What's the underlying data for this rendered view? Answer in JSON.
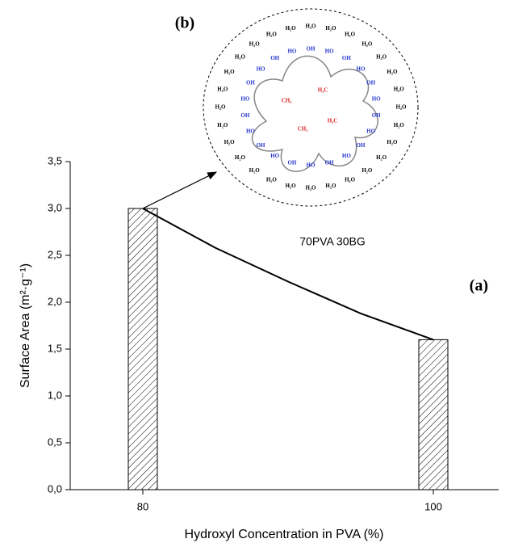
{
  "chart_data": {
    "type": "bar",
    "x_label": "Hydroxyl Concentration in PVA (%)",
    "y_label": "Surface Area (m²·g⁻¹)",
    "x": [
      80,
      100
    ],
    "values": [
      3.0,
      1.6
    ],
    "color": "#000000",
    "xlim": [
      75,
      104.5
    ],
    "xticks": [
      80,
      100
    ],
    "ylim": [
      0,
      3.5
    ],
    "yticks": [
      {
        "value": 0,
        "label": "0,0"
      },
      {
        "value": 0.5,
        "label": "0,5"
      },
      {
        "value": 1,
        "label": "1,0"
      },
      {
        "value": 1.5,
        "label": "1,5"
      },
      {
        "value": 2,
        "label": "2,0"
      },
      {
        "value": 2.5,
        "label": "2,5"
      },
      {
        "value": 3,
        "label": "3,0"
      },
      {
        "value": 3.5,
        "label": "3,5"
      }
    ],
    "fit": {
      "x": [
        80,
        85,
        90,
        95,
        100
      ],
      "values": [
        3.0,
        2.58,
        2.22,
        1.88,
        1.6
      ]
    },
    "annotations": {
      "a": "(a)",
      "b": "(b)",
      "inset_caption": "70PVA 30BG"
    },
    "inset_labels": [
      "H₂O",
      "OH",
      "HO",
      "CH₃",
      "H₃C"
    ]
  }
}
